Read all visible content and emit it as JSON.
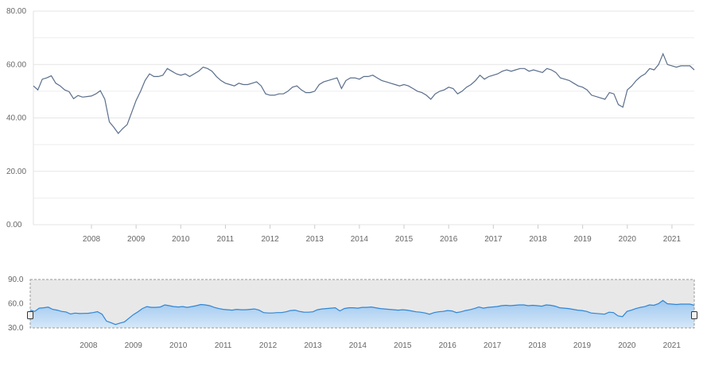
{
  "chart_data": {
    "type": "line",
    "title": "",
    "xlabel": "",
    "ylabel": "",
    "ylim": [
      0,
      80
    ],
    "y_ticks": [
      "0.00",
      "20.00",
      "40.00",
      "60.00",
      "80.00"
    ],
    "x_ticks": [
      "2008",
      "2009",
      "2010",
      "2011",
      "2012",
      "2013",
      "2014",
      "2015",
      "2016",
      "2017",
      "2018",
      "2019",
      "2020",
      "2021"
    ],
    "x_range": [
      2007.2,
      2022.0
    ],
    "grid": "horizontal",
    "legend": "none",
    "line_color": "#5a6e8c",
    "series": [
      {
        "x": [
          2007.2,
          2007.3,
          2007.4,
          2007.5,
          2007.6,
          2007.7,
          2007.8,
          2007.9,
          2008.0,
          2008.1,
          2008.2,
          2008.3,
          2008.4,
          2008.5,
          2008.6,
          2008.7,
          2008.8,
          2008.9,
          2009.0,
          2009.1,
          2009.2,
          2009.3,
          2009.4,
          2009.5,
          2009.6,
          2009.7,
          2009.8,
          2009.9,
          2010.0,
          2010.1,
          2010.2,
          2010.3,
          2010.4,
          2010.5,
          2010.6,
          2010.7,
          2010.8,
          2010.9,
          2011.0,
          2011.1,
          2011.2,
          2011.3,
          2011.4,
          2011.5,
          2011.6,
          2011.7,
          2011.8,
          2011.9,
          2012.0,
          2012.1,
          2012.2,
          2012.3,
          2012.4,
          2012.5,
          2012.6,
          2012.7,
          2012.8,
          2012.9,
          2013.0,
          2013.1,
          2013.2,
          2013.3,
          2013.4,
          2013.5,
          2013.6,
          2013.7,
          2013.8,
          2013.9,
          2014.0,
          2014.1,
          2014.2,
          2014.3,
          2014.4,
          2014.5,
          2014.6,
          2014.7,
          2014.8,
          2014.9,
          2015.0,
          2015.1,
          2015.2,
          2015.3,
          2015.4,
          2015.5,
          2015.6,
          2015.7,
          2015.8,
          2015.9,
          2016.0,
          2016.1,
          2016.2,
          2016.3,
          2016.4,
          2016.5,
          2016.6,
          2016.7,
          2016.8,
          2016.9,
          2017.0,
          2017.1,
          2017.2,
          2017.3,
          2017.4,
          2017.5,
          2017.6,
          2017.7,
          2017.8,
          2017.9,
          2018.0,
          2018.1,
          2018.2,
          2018.3,
          2018.4,
          2018.5,
          2018.6,
          2018.7,
          2018.8,
          2018.9,
          2019.0,
          2019.1,
          2019.2,
          2019.3,
          2019.4,
          2019.5,
          2019.6,
          2019.7,
          2019.8,
          2019.9,
          2020.0,
          2020.1,
          2020.2,
          2020.3,
          2020.4,
          2020.5,
          2020.6,
          2020.7,
          2020.8,
          2020.9,
          2021.0,
          2021.1,
          2021.2,
          2021.3,
          2021.4,
          2021.5,
          2021.6,
          2021.7,
          2021.8,
          2021.9,
          2022.0
        ],
        "values": [
          52.0,
          50.5,
          54.5,
          55.0,
          55.8,
          53.0,
          52.0,
          50.5,
          49.8,
          47.2,
          48.4,
          47.8,
          48.0,
          48.2,
          49.0,
          50.2,
          47.0,
          38.5,
          36.5,
          34.2,
          36.0,
          37.5,
          42.0,
          46.5,
          50.0,
          54.0,
          56.5,
          55.5,
          55.5,
          56.0,
          58.5,
          57.5,
          56.5,
          56.0,
          56.5,
          55.5,
          56.5,
          57.5,
          59.0,
          58.5,
          57.5,
          55.5,
          54.0,
          53.0,
          52.5,
          52.0,
          53.0,
          52.5,
          52.5,
          53.0,
          53.5,
          52.0,
          49.0,
          48.5,
          48.5,
          49.0,
          49.0,
          50.0,
          51.5,
          52.0,
          50.5,
          49.5,
          49.5,
          50.0,
          52.5,
          53.5,
          54.0,
          54.5,
          55.0,
          51.0,
          54.0,
          55.0,
          55.0,
          54.5,
          55.5,
          55.5,
          56.0,
          55.0,
          54.0,
          53.5,
          53.0,
          52.5,
          52.0,
          52.5,
          52.0,
          51.0,
          50.0,
          49.5,
          48.5,
          47.0,
          49.0,
          50.0,
          50.5,
          51.5,
          51.0,
          49.0,
          50.0,
          51.5,
          52.5,
          54.0,
          56.0,
          54.5,
          55.5,
          56.0,
          56.5,
          57.5,
          58.0,
          57.5,
          58.0,
          58.5,
          58.5,
          57.5,
          58.0,
          57.5,
          57.0,
          58.5,
          58.0,
          57.0,
          55.0,
          54.5,
          54.0,
          53.0,
          52.0,
          51.5,
          50.5,
          48.5,
          48.0,
          47.5,
          47.0,
          49.5,
          49.0,
          45.0,
          44.0,
          50.5,
          52.0,
          54.0,
          55.5,
          56.5,
          58.5,
          58.0,
          60.0,
          64.0,
          60.0,
          59.5,
          59.0,
          59.5,
          59.5,
          59.5,
          58.0
        ]
      }
    ],
    "navigator": {
      "ylim": [
        30,
        90
      ],
      "y_ticks": [
        "30.0",
        "60.0",
        "90.0"
      ],
      "x_ticks": [
        "2008",
        "2009",
        "2010",
        "2011",
        "2012",
        "2013",
        "2014",
        "2015",
        "2016",
        "2017",
        "2018",
        "2019",
        "2020",
        "2021"
      ],
      "fill_top": "#9fc7ef",
      "fill_bottom": "#d6e8f8",
      "line_color": "#2f86d6",
      "mask_color": "#e8e8e8",
      "border_color": "#9a9a9a"
    }
  }
}
